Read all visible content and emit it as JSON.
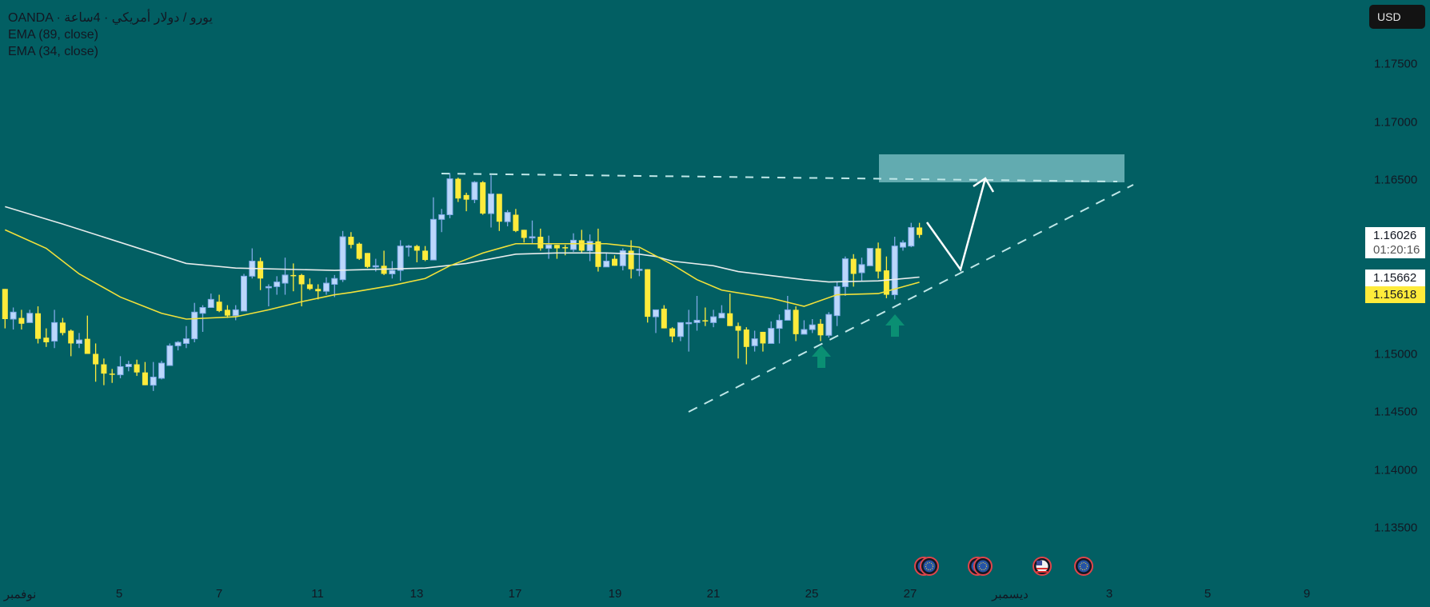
{
  "legend": {
    "symbol": "OANDA · يورو / دولار أمريكي · 4ساعة",
    "ema_slow": "EMA (89, close)",
    "ema_fast": "EMA (34, close)"
  },
  "currency_button": "USD",
  "colors": {
    "background": "#025f63",
    "up": "#bbd7fb",
    "up_border": "#7fa9e6",
    "down": "#ffeb3b",
    "ema89": "#e8ecec",
    "ema34": "#f2e13a",
    "zone": "#62abb0",
    "arrow_marker": "#0a8f73"
  },
  "price_labels": {
    "last_price": "1.16026",
    "countdown": "01:20:16",
    "ema89_value": "1.15662",
    "ema34_value": "1.15618"
  },
  "event_icons": [
    "eu-flag-icon",
    "eu-flag-icon",
    "eu-flag-icon",
    "eu-flag-icon",
    "us-flag-icon",
    "eu-flag-icon"
  ],
  "chart_data": {
    "type": "candlestick",
    "timeframe": "4H",
    "ylim": [
      1.1315,
      1.1785
    ],
    "y_ticks": [
      "1.17500",
      "1.17000",
      "1.16500",
      "1.15000",
      "1.14500",
      "1.14000",
      "1.13500"
    ],
    "x_ticks": [
      "نوفمبر",
      "5",
      "7",
      "11",
      "13",
      "17",
      "19",
      "21",
      "25",
      "27",
      "ديسمبر",
      "3",
      "5",
      "9"
    ],
    "candles_ohlc": [
      [
        1.1556,
        1.1556,
        1.1522,
        1.153
      ],
      [
        1.153,
        1.154,
        1.1521,
        1.1536
      ],
      [
        1.1531,
        1.1538,
        1.1521,
        1.1526
      ],
      [
        1.1527,
        1.1538,
        1.1527,
        1.1535
      ],
      [
        1.1535,
        1.1541,
        1.1509,
        1.1513
      ],
      [
        1.1514,
        1.1522,
        1.1506,
        1.151
      ],
      [
        1.1511,
        1.1538,
        1.1505,
        1.1527
      ],
      [
        1.1527,
        1.1531,
        1.1516,
        1.1518
      ],
      [
        1.152,
        1.1521,
        1.1498,
        1.1509
      ],
      [
        1.1509,
        1.1518,
        1.1505,
        1.1512
      ],
      [
        1.1513,
        1.1533,
        1.15,
        1.15
      ],
      [
        1.15,
        1.1509,
        1.1476,
        1.1491
      ],
      [
        1.1491,
        1.1496,
        1.1473,
        1.1483
      ],
      [
        1.1483,
        1.1487,
        1.1475,
        1.1482
      ],
      [
        1.1482,
        1.1498,
        1.1479,
        1.1489
      ],
      [
        1.1489,
        1.1494,
        1.1485,
        1.1491
      ],
      [
        1.1491,
        1.1495,
        1.1481,
        1.1484
      ],
      [
        1.1484,
        1.1493,
        1.1473,
        1.1473
      ],
      [
        1.1473,
        1.1493,
        1.1468,
        1.148
      ],
      [
        1.1479,
        1.1494,
        1.1478,
        1.1492
      ],
      [
        1.149,
        1.1509,
        1.149,
        1.1507
      ],
      [
        1.1507,
        1.1511,
        1.1503,
        1.151
      ],
      [
        1.1509,
        1.1524,
        1.1505,
        1.1513
      ],
      [
        1.1513,
        1.1544,
        1.151,
        1.1536
      ],
      [
        1.1535,
        1.1542,
        1.1519,
        1.154
      ],
      [
        1.154,
        1.1552,
        1.154,
        1.1547
      ],
      [
        1.1545,
        1.1551,
        1.1536,
        1.1537
      ],
      [
        1.1538,
        1.1542,
        1.1531,
        1.1533
      ],
      [
        1.1533,
        1.1542,
        1.1529,
        1.1538
      ],
      [
        1.1537,
        1.1569,
        1.1537,
        1.1567
      ],
      [
        1.1567,
        1.1591,
        1.1565,
        1.158
      ],
      [
        1.158,
        1.1583,
        1.1555,
        1.1565
      ],
      [
        1.1558,
        1.156,
        1.1541,
        1.1558
      ],
      [
        1.1558,
        1.1567,
        1.1551,
        1.1562
      ],
      [
        1.1561,
        1.1583,
        1.1551,
        1.1568
      ],
      [
        1.1568,
        1.1578,
        1.1554,
        1.1567
      ],
      [
        1.1568,
        1.1569,
        1.1541,
        1.156
      ],
      [
        1.156,
        1.1565,
        1.1555,
        1.1556
      ],
      [
        1.1556,
        1.156,
        1.1547,
        1.1554
      ],
      [
        1.1554,
        1.1566,
        1.1551,
        1.1561
      ],
      [
        1.156,
        1.1568,
        1.1549,
        1.1565
      ],
      [
        1.1564,
        1.1606,
        1.1562,
        1.1601
      ],
      [
        1.1601,
        1.1605,
        1.1591,
        1.1594
      ],
      [
        1.1595,
        1.1596,
        1.1581,
        1.1582
      ],
      [
        1.1587,
        1.1587,
        1.1574,
        1.1575
      ],
      [
        1.1575,
        1.1582,
        1.1571,
        1.1576
      ],
      [
        1.1576,
        1.1589,
        1.1568,
        1.1569
      ],
      [
        1.1569,
        1.158,
        1.1565,
        1.1572
      ],
      [
        1.1572,
        1.1598,
        1.1563,
        1.1593
      ],
      [
        1.1592,
        1.1594,
        1.1584,
        1.1593
      ],
      [
        1.1593,
        1.1594,
        1.1579,
        1.1589
      ],
      [
        1.1589,
        1.1593,
        1.158,
        1.1581
      ],
      [
        1.1581,
        1.1635,
        1.1581,
        1.1616
      ],
      [
        1.1616,
        1.1625,
        1.1605,
        1.162
      ],
      [
        1.162,
        1.1656,
        1.1617,
        1.1651
      ],
      [
        1.1651,
        1.1652,
        1.1631,
        1.1634
      ],
      [
        1.1637,
        1.1639,
        1.1623,
        1.1633
      ],
      [
        1.1633,
        1.1649,
        1.163,
        1.1648
      ],
      [
        1.1648,
        1.1649,
        1.162,
        1.1621
      ],
      [
        1.1621,
        1.1654,
        1.1609,
        1.1638
      ],
      [
        1.1638,
        1.1638,
        1.1606,
        1.1614
      ],
      [
        1.1614,
        1.1624,
        1.161,
        1.1622
      ],
      [
        1.162,
        1.1625,
        1.1605,
        1.1606
      ],
      [
        1.1607,
        1.1607,
        1.1596,
        1.16
      ],
      [
        1.16,
        1.1615,
        1.1595,
        1.1601
      ],
      [
        1.1601,
        1.1608,
        1.1589,
        1.1591
      ],
      [
        1.1591,
        1.1602,
        1.1582,
        1.1594
      ],
      [
        1.1594,
        1.1594,
        1.1582,
        1.1591
      ],
      [
        1.1592,
        1.1594,
        1.1585,
        1.1591
      ],
      [
        1.159,
        1.1604,
        1.1588,
        1.1598
      ],
      [
        1.1598,
        1.1607,
        1.1587,
        1.1589
      ],
      [
        1.1589,
        1.1603,
        1.158,
        1.1597
      ],
      [
        1.1597,
        1.1608,
        1.1571,
        1.1575
      ],
      [
        1.1575,
        1.1587,
        1.1575,
        1.158
      ],
      [
        1.1582,
        1.1585,
        1.1576,
        1.1576
      ],
      [
        1.1576,
        1.1591,
        1.1572,
        1.1589
      ],
      [
        1.1589,
        1.1598,
        1.1565,
        1.1573
      ],
      [
        1.1573,
        1.1591,
        1.1567,
        1.1573
      ],
      [
        1.1573,
        1.1573,
        1.1527,
        1.1532
      ],
      [
        1.1532,
        1.1538,
        1.1518,
        1.1538
      ],
      [
        1.1539,
        1.1542,
        1.1522,
        1.1522
      ],
      [
        1.1522,
        1.1523,
        1.151,
        1.1515
      ],
      [
        1.1515,
        1.1527,
        1.1511,
        1.1527
      ],
      [
        1.1527,
        1.1538,
        1.1502,
        1.1527
      ],
      [
        1.1527,
        1.155,
        1.152,
        1.1529
      ],
      [
        1.1529,
        1.154,
        1.1524,
        1.1528
      ],
      [
        1.1527,
        1.1538,
        1.1523,
        1.1532
      ],
      [
        1.1531,
        1.1542,
        1.1531,
        1.1535
      ],
      [
        1.1535,
        1.1552,
        1.1524,
        1.1524
      ],
      [
        1.1524,
        1.1527,
        1.1496,
        1.152
      ],
      [
        1.1521,
        1.1523,
        1.1491,
        1.1506
      ],
      [
        1.1507,
        1.152,
        1.1502,
        1.1513
      ],
      [
        1.1519,
        1.1519,
        1.1502,
        1.1509
      ],
      [
        1.1509,
        1.1528,
        1.1509,
        1.1522
      ],
      [
        1.1522,
        1.1534,
        1.1509,
        1.1529
      ],
      [
        1.1529,
        1.155,
        1.1529,
        1.1538
      ],
      [
        1.1538,
        1.1541,
        1.1511,
        1.1517
      ],
      [
        1.1517,
        1.1529,
        1.1517,
        1.1521
      ],
      [
        1.1521,
        1.153,
        1.1518,
        1.1525
      ],
      [
        1.1526,
        1.153,
        1.1511,
        1.1516
      ],
      [
        1.1516,
        1.1536,
        1.1514,
        1.1534
      ],
      [
        1.1533,
        1.1562,
        1.1524,
        1.1558
      ],
      [
        1.1558,
        1.1584,
        1.155,
        1.1582
      ],
      [
        1.1582,
        1.1586,
        1.1558,
        1.1569
      ],
      [
        1.157,
        1.1583,
        1.1563,
        1.1577
      ],
      [
        1.1576,
        1.1591,
        1.1576,
        1.1591
      ],
      [
        1.1591,
        1.1596,
        1.1565,
        1.1571
      ],
      [
        1.1572,
        1.1584,
        1.1548,
        1.1551
      ],
      [
        1.1551,
        1.1601,
        1.1547,
        1.1593
      ],
      [
        1.1592,
        1.1598,
        1.1589,
        1.1596
      ],
      [
        1.1593,
        1.1613,
        1.1592,
        1.1609
      ],
      [
        1.1609,
        1.1613,
        1.16,
        1.16026
      ]
    ],
    "ema89": [
      [
        0,
        1.1627
      ],
      [
        7,
        1.1612
      ],
      [
        22,
        1.1578
      ],
      [
        28,
        1.1574
      ],
      [
        40,
        1.1572
      ],
      [
        51,
        1.1574
      ],
      [
        56,
        1.1578
      ],
      [
        62,
        1.1586
      ],
      [
        67,
        1.1587
      ],
      [
        73,
        1.1587
      ],
      [
        77,
        1.1586
      ],
      [
        79,
        1.1584
      ],
      [
        81,
        1.158
      ],
      [
        86,
        1.1576
      ],
      [
        89,
        1.1571
      ],
      [
        97,
        1.1564
      ],
      [
        100,
        1.1562
      ],
      [
        106,
        1.1563
      ],
      [
        111,
        1.15662
      ]
    ],
    "ema34": [
      [
        0,
        1.1607
      ],
      [
        5,
        1.1591
      ],
      [
        9,
        1.1569
      ],
      [
        14,
        1.1549
      ],
      [
        19,
        1.1535
      ],
      [
        22,
        1.153
      ],
      [
        28,
        1.1532
      ],
      [
        32,
        1.1538
      ],
      [
        36,
        1.1545
      ],
      [
        40,
        1.1551
      ],
      [
        42,
        1.1553
      ],
      [
        47,
        1.1559
      ],
      [
        51,
        1.1565
      ],
      [
        54,
        1.1576
      ],
      [
        58,
        1.1587
      ],
      [
        62,
        1.1595
      ],
      [
        67,
        1.1595
      ],
      [
        73,
        1.1595
      ],
      [
        77,
        1.1592
      ],
      [
        81,
        1.1577
      ],
      [
        84,
        1.1564
      ],
      [
        87,
        1.1555
      ],
      [
        93,
        1.1548
      ],
      [
        97,
        1.1541
      ],
      [
        101,
        1.1551
      ],
      [
        106,
        1.1552
      ],
      [
        111,
        1.15618
      ]
    ]
  }
}
